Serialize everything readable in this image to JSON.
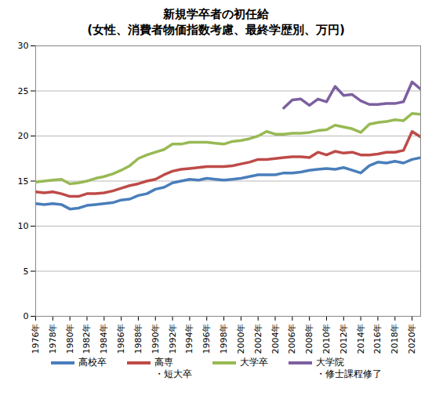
{
  "chart_data": {
    "type": "line",
    "title": "新規学卒者の初任給",
    "subtitle": "(女性、消費者物価指数考慮、最終学歴別、万円)",
    "x": [
      1976,
      1977,
      1978,
      1979,
      1980,
      1981,
      1982,
      1983,
      1984,
      1985,
      1986,
      1987,
      1988,
      1989,
      1990,
      1991,
      1992,
      1993,
      1994,
      1995,
      1996,
      1997,
      1998,
      1999,
      2000,
      2001,
      2002,
      2003,
      2004,
      2005,
      2006,
      2007,
      2008,
      2009,
      2010,
      2011,
      2012,
      2013,
      2014,
      2015,
      2016,
      2017,
      2018,
      2019,
      2020,
      2021
    ],
    "series": [
      {
        "name": "高校卒",
        "color": "#4a7ebb",
        "values": [
          12.5,
          12.4,
          12.5,
          12.4,
          11.9,
          12.0,
          12.3,
          12.4,
          12.5,
          12.6,
          12.9,
          13.0,
          13.4,
          13.6,
          14.1,
          14.3,
          14.8,
          15.0,
          15.2,
          15.1,
          15.3,
          15.2,
          15.1,
          15.2,
          15.3,
          15.5,
          15.7,
          15.7,
          15.7,
          15.9,
          15.9,
          16.0,
          16.2,
          16.3,
          16.4,
          16.3,
          16.5,
          16.2,
          15.9,
          16.7,
          17.1,
          17.0,
          17.2,
          17.0,
          17.4,
          17.6
        ]
      },
      {
        "name": "高専・短大卒",
        "color": "#be4b48",
        "values": [
          13.8,
          13.7,
          13.8,
          13.6,
          13.3,
          13.3,
          13.6,
          13.6,
          13.7,
          13.9,
          14.2,
          14.5,
          14.7,
          15.0,
          15.2,
          15.7,
          16.1,
          16.3,
          16.4,
          16.5,
          16.6,
          16.6,
          16.6,
          16.7,
          16.9,
          17.1,
          17.4,
          17.4,
          17.5,
          17.6,
          17.7,
          17.7,
          17.6,
          18.2,
          17.9,
          18.3,
          18.1,
          18.2,
          17.9,
          17.9,
          18.0,
          18.2,
          18.2,
          18.4,
          20.5,
          19.9
        ]
      },
      {
        "name": "大学卒",
        "color": "#98b954",
        "values": [
          14.9,
          15.0,
          15.1,
          15.2,
          14.7,
          14.8,
          15.0,
          15.3,
          15.5,
          15.8,
          16.2,
          16.7,
          17.5,
          17.9,
          18.2,
          18.5,
          19.1,
          19.1,
          19.3,
          19.3,
          19.3,
          19.2,
          19.1,
          19.4,
          19.5,
          19.7,
          20.0,
          20.5,
          20.2,
          20.2,
          20.3,
          20.3,
          20.4,
          20.6,
          20.7,
          21.2,
          21.0,
          20.8,
          20.4,
          21.3,
          21.5,
          21.6,
          21.8,
          21.7,
          22.5,
          22.4
        ]
      },
      {
        "name": "大学院・修士課程修了",
        "color": "#7d60a0",
        "values": [
          null,
          null,
          null,
          null,
          null,
          null,
          null,
          null,
          null,
          null,
          null,
          null,
          null,
          null,
          null,
          null,
          null,
          null,
          null,
          null,
          null,
          null,
          null,
          null,
          null,
          null,
          null,
          null,
          null,
          23.1,
          24.0,
          24.1,
          23.4,
          24.1,
          23.8,
          25.5,
          24.5,
          24.6,
          23.9,
          23.5,
          23.5,
          23.6,
          23.6,
          23.8,
          26.0,
          25.2
        ]
      }
    ],
    "xlim": [
      1976,
      2021
    ],
    "xticks": [
      {
        "value": 1976,
        "label": "1976年"
      },
      {
        "value": 1978,
        "label": "1978年"
      },
      {
        "value": 1980,
        "label": "1980年"
      },
      {
        "value": 1982,
        "label": "1982年"
      },
      {
        "value": 1984,
        "label": "1984年"
      },
      {
        "value": 1986,
        "label": "1986年"
      },
      {
        "value": 1988,
        "label": "1988年"
      },
      {
        "value": 1990,
        "label": "1990年"
      },
      {
        "value": 1992,
        "label": "1992年"
      },
      {
        "value": 1994,
        "label": "1994年"
      },
      {
        "value": 1996,
        "label": "1996年"
      },
      {
        "value": 1998,
        "label": "1998年"
      },
      {
        "value": 2000,
        "label": "2000年"
      },
      {
        "value": 2002,
        "label": "2002年"
      },
      {
        "value": 2004,
        "label": "2004年"
      },
      {
        "value": 2006,
        "label": "2006年"
      },
      {
        "value": 2008,
        "label": "2008年"
      },
      {
        "value": 2010,
        "label": "2010年"
      },
      {
        "value": 2012,
        "label": "2012年"
      },
      {
        "value": 2014,
        "label": "2014年"
      },
      {
        "value": 2016,
        "label": "2016年"
      },
      {
        "value": 2018,
        "label": "2018年"
      },
      {
        "value": 2020,
        "label": "2020年"
      }
    ],
    "ylim": [
      0,
      30
    ],
    "yticks": [
      0,
      5,
      10,
      15,
      20,
      25,
      30
    ],
    "grid": true,
    "legend": "bottom"
  }
}
